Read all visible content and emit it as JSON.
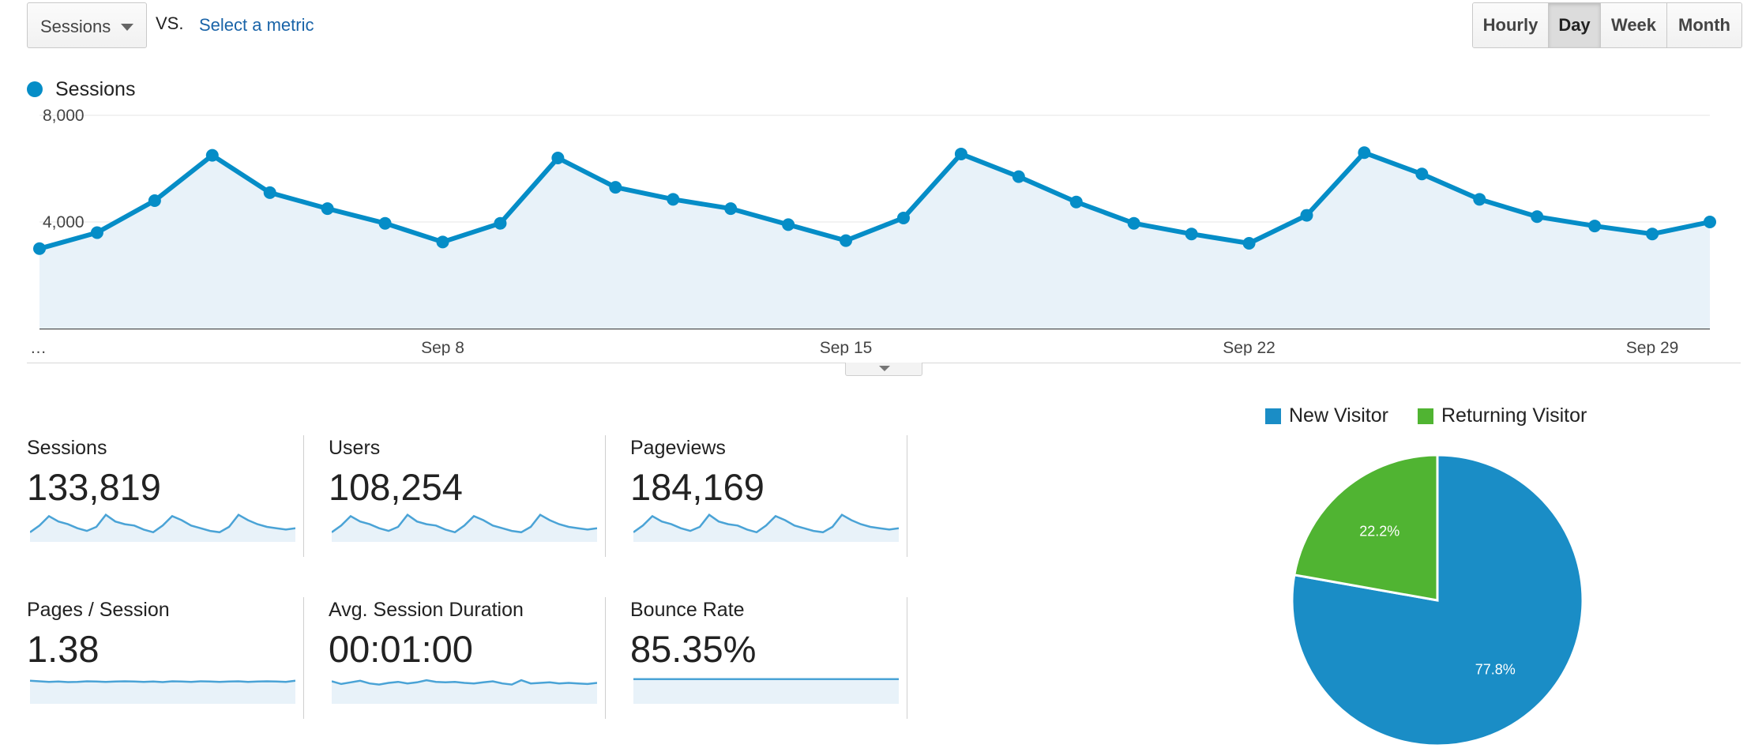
{
  "toolbar": {
    "metric_select": "Sessions",
    "vs_label": "VS.",
    "select_metric_link": "Select a metric",
    "periods": [
      "Hourly",
      "Day",
      "Week",
      "Month"
    ],
    "active_period": "Day"
  },
  "chart_data": [
    {
      "type": "area",
      "series": [
        {
          "name": "Sessions",
          "values": [
            3000,
            3600,
            4800,
            6500,
            5100,
            4500,
            3950,
            3250,
            3950,
            6400,
            5300,
            4850,
            4500,
            3900,
            3300,
            4150,
            6550,
            5700,
            4750,
            3950,
            3550,
            3200,
            4250,
            6600,
            5800,
            4850,
            4200,
            3850,
            3550,
            4000
          ]
        }
      ],
      "color": "#058dc7",
      "fill": "#e8f2f9",
      "ylim": [
        0,
        8000
      ],
      "y_ticks": [
        "8,000",
        "4,000"
      ],
      "x_ticks": [
        {
          "label": "…",
          "index": 0
        },
        {
          "label": "Sep 8",
          "index": 7
        },
        {
          "label": "Sep 15",
          "index": 14
        },
        {
          "label": "Sep 22",
          "index": 21
        },
        {
          "label": "Sep 29",
          "index": 28
        }
      ],
      "legend_placement": "top-left",
      "grid": true
    },
    {
      "type": "pie",
      "labels": [
        "New Visitor",
        "Returning Visitor"
      ],
      "values": [
        77.8,
        22.2
      ],
      "value_labels": [
        "77.8%",
        "22.2%"
      ],
      "colors": [
        "#1a8dc6",
        "#50b432"
      ]
    }
  ],
  "legend": {
    "series_label": "Sessions",
    "color": "#058dc7"
  },
  "metrics": [
    {
      "label": "Sessions",
      "value": "133,819",
      "spark": [
        0.3,
        0.55,
        0.9,
        0.7,
        0.6,
        0.45,
        0.35,
        0.5,
        0.95,
        0.7,
        0.6,
        0.55,
        0.4,
        0.3,
        0.55,
        0.9,
        0.75,
        0.55,
        0.45,
        0.35,
        0.3,
        0.5,
        0.95,
        0.75,
        0.6,
        0.5,
        0.45,
        0.4,
        0.45
      ]
    },
    {
      "label": "Users",
      "value": "108,254",
      "spark": [
        0.3,
        0.55,
        0.9,
        0.7,
        0.6,
        0.45,
        0.35,
        0.5,
        0.95,
        0.7,
        0.6,
        0.55,
        0.4,
        0.3,
        0.55,
        0.9,
        0.75,
        0.55,
        0.45,
        0.35,
        0.3,
        0.5,
        0.95,
        0.75,
        0.6,
        0.5,
        0.45,
        0.4,
        0.45
      ]
    },
    {
      "label": "Pageviews",
      "value": "184,169",
      "spark": [
        0.3,
        0.55,
        0.9,
        0.7,
        0.6,
        0.45,
        0.35,
        0.5,
        0.95,
        0.7,
        0.6,
        0.55,
        0.4,
        0.3,
        0.55,
        0.9,
        0.75,
        0.55,
        0.45,
        0.35,
        0.3,
        0.5,
        0.95,
        0.75,
        0.6,
        0.5,
        0.45,
        0.4,
        0.45
      ]
    },
    {
      "label": "Pages / Session",
      "value": "1.38",
      "spark": [
        0.8,
        0.78,
        0.76,
        0.77,
        0.75,
        0.76,
        0.78,
        0.77,
        0.76,
        0.77,
        0.78,
        0.77,
        0.76,
        0.77,
        0.75,
        0.78,
        0.77,
        0.76,
        0.78,
        0.77,
        0.76,
        0.77,
        0.78,
        0.76,
        0.77,
        0.78,
        0.77,
        0.76,
        0.8
      ]
    },
    {
      "label": "Avg. Session Duration",
      "value": "00:01:00",
      "spark": [
        0.78,
        0.68,
        0.74,
        0.8,
        0.7,
        0.66,
        0.72,
        0.76,
        0.7,
        0.74,
        0.82,
        0.76,
        0.74,
        0.76,
        0.72,
        0.7,
        0.74,
        0.78,
        0.7,
        0.66,
        0.82,
        0.7,
        0.72,
        0.74,
        0.7,
        0.72,
        0.7,
        0.68,
        0.72
      ]
    },
    {
      "label": "Bounce Rate",
      "value": "85.35%",
      "spark": [
        0.86,
        0.86,
        0.86,
        0.86,
        0.86,
        0.86,
        0.86,
        0.86,
        0.86,
        0.86,
        0.86,
        0.86,
        0.86,
        0.86,
        0.86,
        0.86,
        0.86,
        0.86,
        0.86,
        0.86,
        0.86,
        0.86,
        0.86,
        0.86,
        0.86,
        0.86,
        0.86,
        0.86,
        0.86
      ]
    }
  ]
}
